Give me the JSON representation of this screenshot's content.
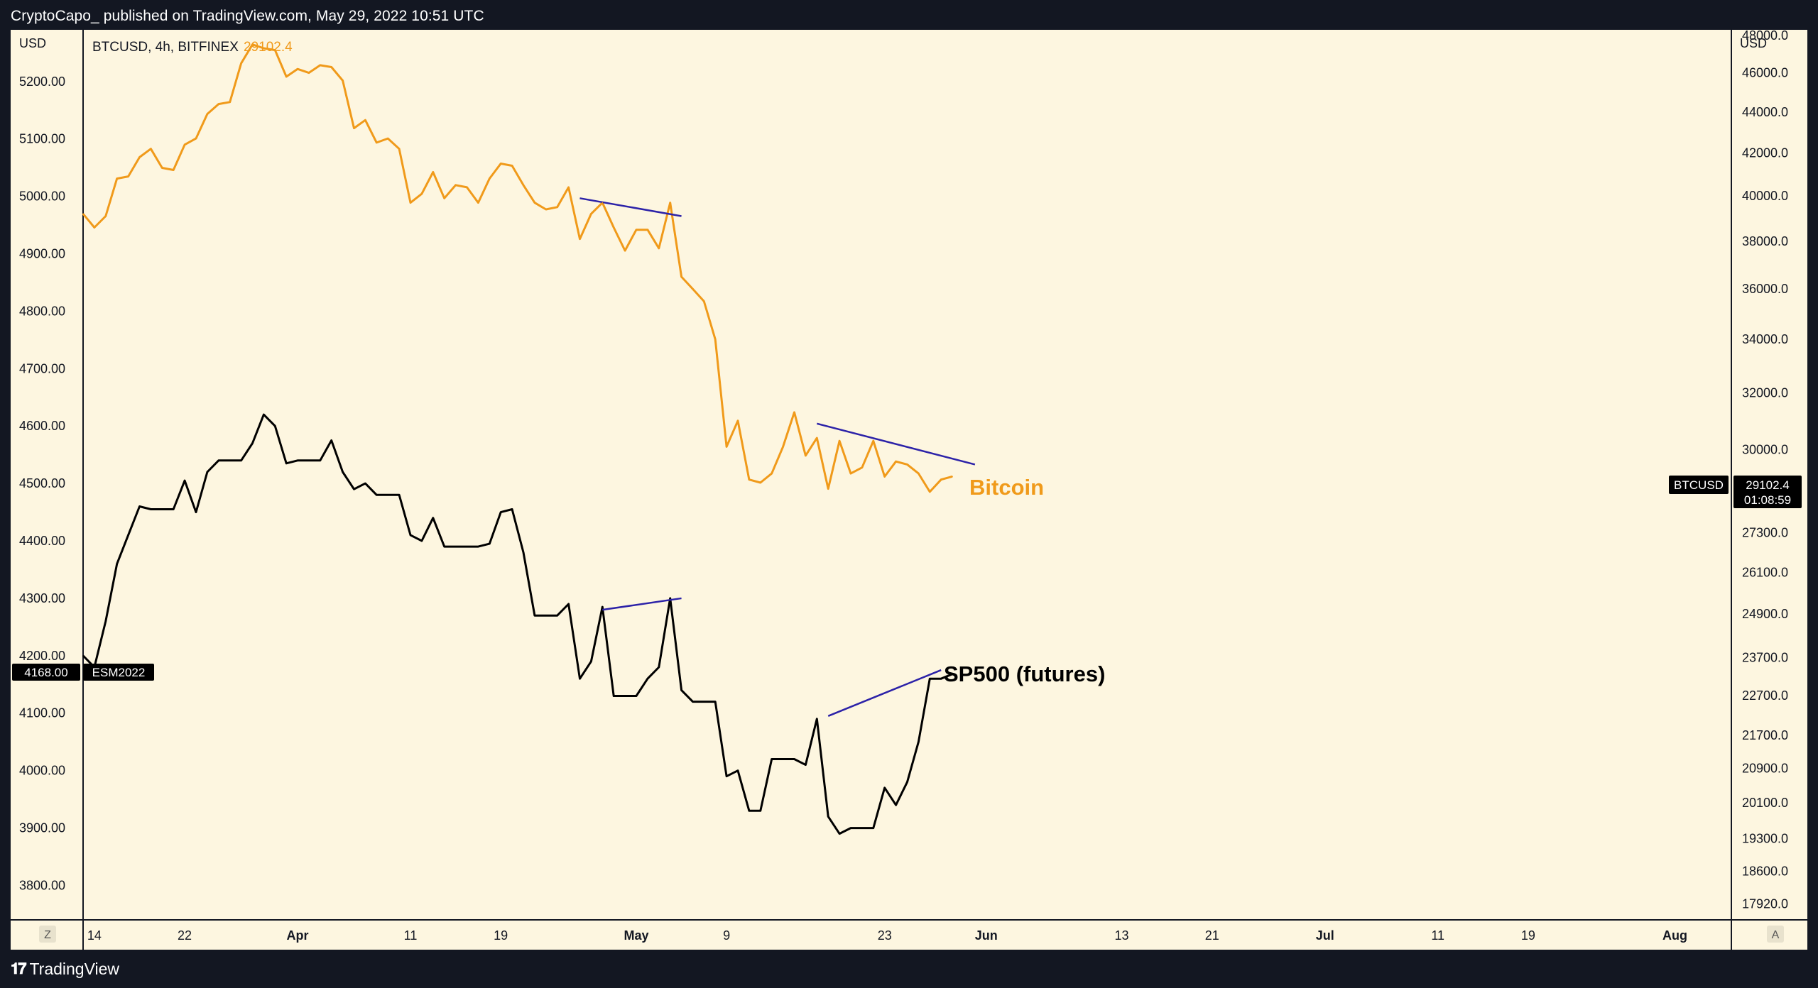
{
  "header": {
    "publish_text": "CryptoCapo_ published on TradingView.com, May 29, 2022 10:51 UTC"
  },
  "footer": {
    "logo_text": "TradingView"
  },
  "legend": {
    "symbol": "BTCUSD, 4h, BITFINEX",
    "price": "29102.4"
  },
  "left_axis": {
    "currency": "USD",
    "ticks": [
      "5200.00",
      "5100.00",
      "5000.00",
      "4900.00",
      "4800.00",
      "4700.00",
      "4600.00",
      "4500.00",
      "4400.00",
      "4300.00",
      "4200.00",
      "4100.00",
      "4000.00",
      "3900.00",
      "3800.00"
    ],
    "marker_value": "4168.00",
    "marker_name": "ESM2022"
  },
  "right_axis": {
    "currency": "USD",
    "ticks": [
      "48000.0",
      "46000.0",
      "44000.0",
      "42000.0",
      "40000.0",
      "38000.0",
      "36000.0",
      "34000.0",
      "32000.0",
      "30000.0",
      "27300.0",
      "26100.0",
      "24900.0",
      "23700.0",
      "22700.0",
      "21700.0",
      "20900.0",
      "20100.0",
      "19300.0",
      "18600.0",
      "17920.0"
    ],
    "marker_name": "BTCUSD",
    "marker_value": "29102.4",
    "marker_countdown": "01:08:59"
  },
  "x_axis": {
    "ticks": [
      "14",
      "22",
      "Apr",
      "11",
      "19",
      "May",
      "9",
      "23",
      "Jun",
      "13",
      "21",
      "Jul",
      "11",
      "19",
      "Aug"
    ],
    "bold_ticks": [
      "Apr",
      "May",
      "Jun",
      "Jul",
      "Aug"
    ]
  },
  "buttons": {
    "left": "Z",
    "right": "A"
  },
  "annotations": {
    "bitcoin": "Bitcoin",
    "sp500": "SP500 (futures)"
  },
  "colors": {
    "bitcoin": "#f09a1a",
    "sp500": "#000000",
    "trendline": "#2c22a8",
    "background": "#fdf6e0",
    "frame": "#131722"
  },
  "chart_data": {
    "type": "line",
    "title": "",
    "xlabel": "",
    "ylabel_left": "USD",
    "ylabel_right": "USD",
    "x_start": "2022-03-13",
    "x_end": "2022-08-06",
    "right_scale": "log",
    "series": [
      {
        "name": "BTCUSD",
        "axis": "right",
        "ylim": [
          17600,
          48300
        ],
        "points": [
          [
            "2022-03-13",
            39200
          ],
          [
            "2022-03-14",
            38600
          ],
          [
            "2022-03-15",
            39100
          ],
          [
            "2022-03-16",
            40800
          ],
          [
            "2022-03-17",
            40900
          ],
          [
            "2022-03-18",
            41800
          ],
          [
            "2022-03-19",
            42200
          ],
          [
            "2022-03-20",
            41300
          ],
          [
            "2022-03-21",
            41200
          ],
          [
            "2022-03-22",
            42400
          ],
          [
            "2022-03-23",
            42700
          ],
          [
            "2022-03-24",
            43900
          ],
          [
            "2022-03-25",
            44400
          ],
          [
            "2022-03-26",
            44500
          ],
          [
            "2022-03-27",
            46500
          ],
          [
            "2022-03-28",
            47500
          ],
          [
            "2022-03-29",
            47300
          ],
          [
            "2022-03-30",
            47200
          ],
          [
            "2022-03-31",
            45800
          ],
          [
            "2022-04-01",
            46200
          ],
          [
            "2022-04-02",
            46000
          ],
          [
            "2022-04-03",
            46400
          ],
          [
            "2022-04-04",
            46300
          ],
          [
            "2022-04-05",
            45600
          ],
          [
            "2022-04-06",
            43200
          ],
          [
            "2022-04-07",
            43600
          ],
          [
            "2022-04-08",
            42500
          ],
          [
            "2022-04-09",
            42700
          ],
          [
            "2022-04-10",
            42200
          ],
          [
            "2022-04-11",
            39700
          ],
          [
            "2022-04-12",
            40100
          ],
          [
            "2022-04-13",
            41100
          ],
          [
            "2022-04-14",
            39900
          ],
          [
            "2022-04-15",
            40500
          ],
          [
            "2022-04-16",
            40400
          ],
          [
            "2022-04-17",
            39700
          ],
          [
            "2022-04-18",
            40800
          ],
          [
            "2022-04-19",
            41500
          ],
          [
            "2022-04-20",
            41400
          ],
          [
            "2022-04-21",
            40500
          ],
          [
            "2022-04-22",
            39700
          ],
          [
            "2022-04-23",
            39400
          ],
          [
            "2022-04-24",
            39500
          ],
          [
            "2022-04-25",
            40400
          ],
          [
            "2022-04-26",
            38100
          ],
          [
            "2022-04-27",
            39200
          ],
          [
            "2022-04-28",
            39700
          ],
          [
            "2022-04-29",
            38600
          ],
          [
            "2022-04-30",
            37600
          ],
          [
            "2022-05-01",
            38500
          ],
          [
            "2022-05-02",
            38500
          ],
          [
            "2022-05-03",
            37700
          ],
          [
            "2022-05-04",
            39700
          ],
          [
            "2022-05-05",
            36500
          ],
          [
            "2022-05-06",
            36000
          ],
          [
            "2022-05-07",
            35500
          ],
          [
            "2022-05-08",
            34000
          ],
          [
            "2022-05-09",
            30100
          ],
          [
            "2022-05-10",
            31000
          ],
          [
            "2022-05-11",
            29000
          ],
          [
            "2022-05-12",
            28900
          ],
          [
            "2022-05-13",
            29200
          ],
          [
            "2022-05-14",
            30100
          ],
          [
            "2022-05-15",
            31300
          ],
          [
            "2022-05-16",
            29800
          ],
          [
            "2022-05-17",
            30400
          ],
          [
            "2022-05-18",
            28700
          ],
          [
            "2022-05-19",
            30300
          ],
          [
            "2022-05-20",
            29200
          ],
          [
            "2022-05-21",
            29400
          ],
          [
            "2022-05-22",
            30300
          ],
          [
            "2022-05-23",
            29100
          ],
          [
            "2022-05-24",
            29600
          ],
          [
            "2022-05-25",
            29500
          ],
          [
            "2022-05-26",
            29200
          ],
          [
            "2022-05-27",
            28600
          ],
          [
            "2022-05-28",
            29000
          ],
          [
            "2022-05-29",
            29102.4
          ]
        ]
      },
      {
        "name": "ESM2022",
        "axis": "left",
        "ylim": [
          3740,
          5290
        ],
        "points": [
          [
            "2022-03-13",
            4200
          ],
          [
            "2022-03-14",
            4180
          ],
          [
            "2022-03-15",
            4260
          ],
          [
            "2022-03-16",
            4360
          ],
          [
            "2022-03-17",
            4410
          ],
          [
            "2022-03-18",
            4460
          ],
          [
            "2022-03-19",
            4455
          ],
          [
            "2022-03-20",
            4455
          ],
          [
            "2022-03-21",
            4455
          ],
          [
            "2022-03-22",
            4505
          ],
          [
            "2022-03-23",
            4450
          ],
          [
            "2022-03-24",
            4520
          ],
          [
            "2022-03-25",
            4540
          ],
          [
            "2022-03-26",
            4540
          ],
          [
            "2022-03-27",
            4540
          ],
          [
            "2022-03-28",
            4570
          ],
          [
            "2022-03-29",
            4620
          ],
          [
            "2022-03-30",
            4600
          ],
          [
            "2022-03-31",
            4535
          ],
          [
            "2022-04-01",
            4540
          ],
          [
            "2022-04-02",
            4540
          ],
          [
            "2022-04-03",
            4540
          ],
          [
            "2022-04-04",
            4575
          ],
          [
            "2022-04-05",
            4520
          ],
          [
            "2022-04-06",
            4490
          ],
          [
            "2022-04-07",
            4500
          ],
          [
            "2022-04-08",
            4480
          ],
          [
            "2022-04-09",
            4480
          ],
          [
            "2022-04-10",
            4480
          ],
          [
            "2022-04-11",
            4410
          ],
          [
            "2022-04-12",
            4400
          ],
          [
            "2022-04-13",
            4440
          ],
          [
            "2022-04-14",
            4390
          ],
          [
            "2022-04-15",
            4390
          ],
          [
            "2022-04-16",
            4390
          ],
          [
            "2022-04-17",
            4390
          ],
          [
            "2022-04-18",
            4395
          ],
          [
            "2022-04-19",
            4450
          ],
          [
            "2022-04-20",
            4455
          ],
          [
            "2022-04-21",
            4380
          ],
          [
            "2022-04-22",
            4270
          ],
          [
            "2022-04-23",
            4270
          ],
          [
            "2022-04-24",
            4270
          ],
          [
            "2022-04-25",
            4290
          ],
          [
            "2022-04-26",
            4160
          ],
          [
            "2022-04-27",
            4190
          ],
          [
            "2022-04-28",
            4285
          ],
          [
            "2022-04-29",
            4130
          ],
          [
            "2022-04-30",
            4130
          ],
          [
            "2022-05-01",
            4130
          ],
          [
            "2022-05-02",
            4160
          ],
          [
            "2022-05-03",
            4180
          ],
          [
            "2022-05-04",
            4300
          ],
          [
            "2022-05-05",
            4140
          ],
          [
            "2022-05-06",
            4120
          ],
          [
            "2022-05-07",
            4120
          ],
          [
            "2022-05-08",
            4120
          ],
          [
            "2022-05-09",
            3990
          ],
          [
            "2022-05-10",
            4000
          ],
          [
            "2022-05-11",
            3930
          ],
          [
            "2022-05-12",
            3930
          ],
          [
            "2022-05-13",
            4020
          ],
          [
            "2022-05-14",
            4020
          ],
          [
            "2022-05-15",
            4020
          ],
          [
            "2022-05-16",
            4010
          ],
          [
            "2022-05-17",
            4090
          ],
          [
            "2022-05-18",
            3920
          ],
          [
            "2022-05-19",
            3890
          ],
          [
            "2022-05-20",
            3900
          ],
          [
            "2022-05-21",
            3900
          ],
          [
            "2022-05-22",
            3900
          ],
          [
            "2022-05-23",
            3970
          ],
          [
            "2022-05-24",
            3940
          ],
          [
            "2022-05-25",
            3980
          ],
          [
            "2022-05-26",
            4050
          ],
          [
            "2022-05-27",
            4160
          ],
          [
            "2022-05-28",
            4160
          ],
          [
            "2022-05-29",
            4168
          ]
        ]
      }
    ],
    "trendlines": [
      {
        "series": "BTCUSD",
        "from": [
          "2022-04-26",
          39900
        ],
        "to": [
          "2022-05-05",
          39100
        ]
      },
      {
        "series": "BTCUSD",
        "from": [
          "2022-05-17",
          30900
        ],
        "to": [
          "2022-05-31",
          29500
        ]
      },
      {
        "series": "ESM2022",
        "from": [
          "2022-04-28",
          4280
        ],
        "to": [
          "2022-05-05",
          4300
        ]
      },
      {
        "series": "ESM2022",
        "from": [
          "2022-05-18",
          4095
        ],
        "to": [
          "2022-05-28",
          4175
        ]
      }
    ]
  }
}
